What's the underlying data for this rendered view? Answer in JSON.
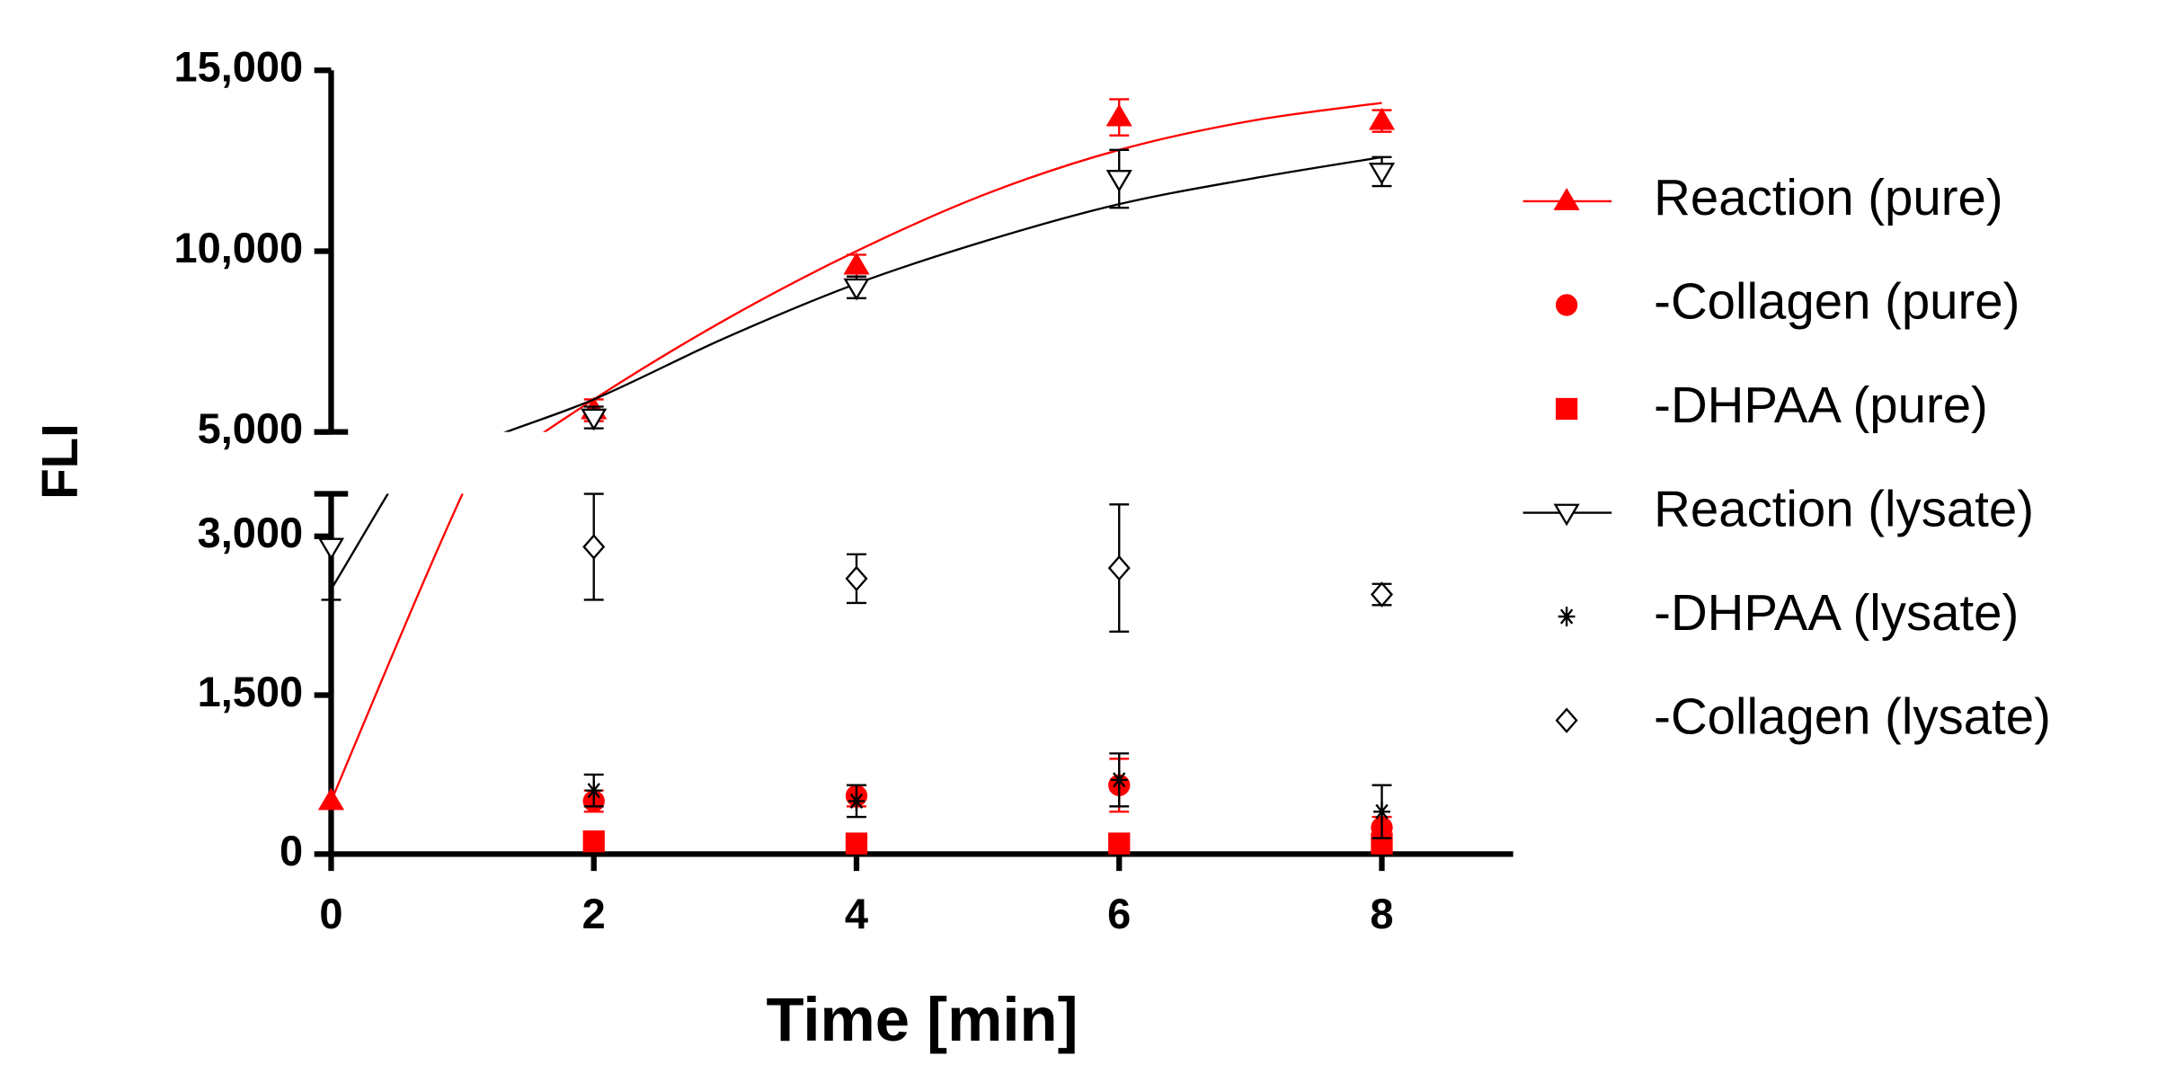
{
  "chart_data": {
    "type": "scatter",
    "xlabel": "Time [min]",
    "ylabel": "FLI",
    "x": [
      0,
      2,
      4,
      6,
      8
    ],
    "xlim": [
      0,
      9
    ],
    "xticks": [
      0,
      2,
      4,
      6,
      8
    ],
    "ylim": [
      0,
      15000
    ],
    "y_break": [
      3400,
      5000
    ],
    "yticks": [
      0,
      {
        "value": 1500,
        "label": "1,500"
      },
      {
        "value": 3000,
        "label": "3,000"
      },
      {
        "value": 5000,
        "label": "5,000"
      },
      {
        "value": 10000,
        "label": "10,000"
      },
      {
        "value": 15000,
        "label": "15,000"
      }
    ],
    "fit_x": [
      0,
      1,
      2,
      3,
      4,
      5,
      6,
      7,
      8
    ],
    "series": [
      {
        "name": "Reaction (pure)",
        "color": "#ff0000",
        "marker": "triangle",
        "fill": "#ff0000",
        "values": [
          500,
          5600,
          9600,
          13700,
          13600
        ],
        "errors": [
          null,
          300,
          300,
          500,
          300
        ],
        "fit": [
          500,
          3400,
          5900,
          8100,
          10000,
          11600,
          12800,
          13600,
          14100
        ]
      },
      {
        "name": "-Collagen (pure)",
        "color": "#ff0000",
        "marker": "circle",
        "fill": "#ff0000",
        "values": [
          null,
          500,
          550,
          650,
          250
        ],
        "errors": [
          null,
          100,
          100,
          250,
          100
        ]
      },
      {
        "name": "-DHPAA (pure)",
        "color": "#ff0000",
        "marker": "square",
        "fill": "#ff0000",
        "values": [
          null,
          120,
          100,
          100,
          100
        ],
        "errors": [
          null,
          30,
          30,
          30,
          30
        ]
      },
      {
        "name": "Reaction (lysate)",
        "color": "#000000",
        "marker": "triangle-down",
        "fill": "#ffffff",
        "values": [
          2900,
          5400,
          9000,
          12000,
          12200
        ],
        "errors": [
          500,
          300,
          300,
          800,
          400
        ],
        "fit": [
          2500,
          4500,
          5900,
          7600,
          9100,
          10300,
          11300,
          12000,
          12600
        ]
      },
      {
        "name": "-DHPAA (lysate)",
        "color": "#000000",
        "marker": "asterisk",
        "fill": "#000000",
        "values": [
          null,
          600,
          500,
          700,
          400
        ],
        "errors": [
          null,
          150,
          150,
          250,
          250
        ]
      },
      {
        "name": "-Collagen (lysate)",
        "color": "#000000",
        "marker": "diamond",
        "fill": "#ffffff",
        "values": [
          null,
          2900,
          2600,
          2700,
          2450
        ],
        "errors": [
          null,
          500,
          230,
          600,
          100
        ]
      }
    ]
  }
}
